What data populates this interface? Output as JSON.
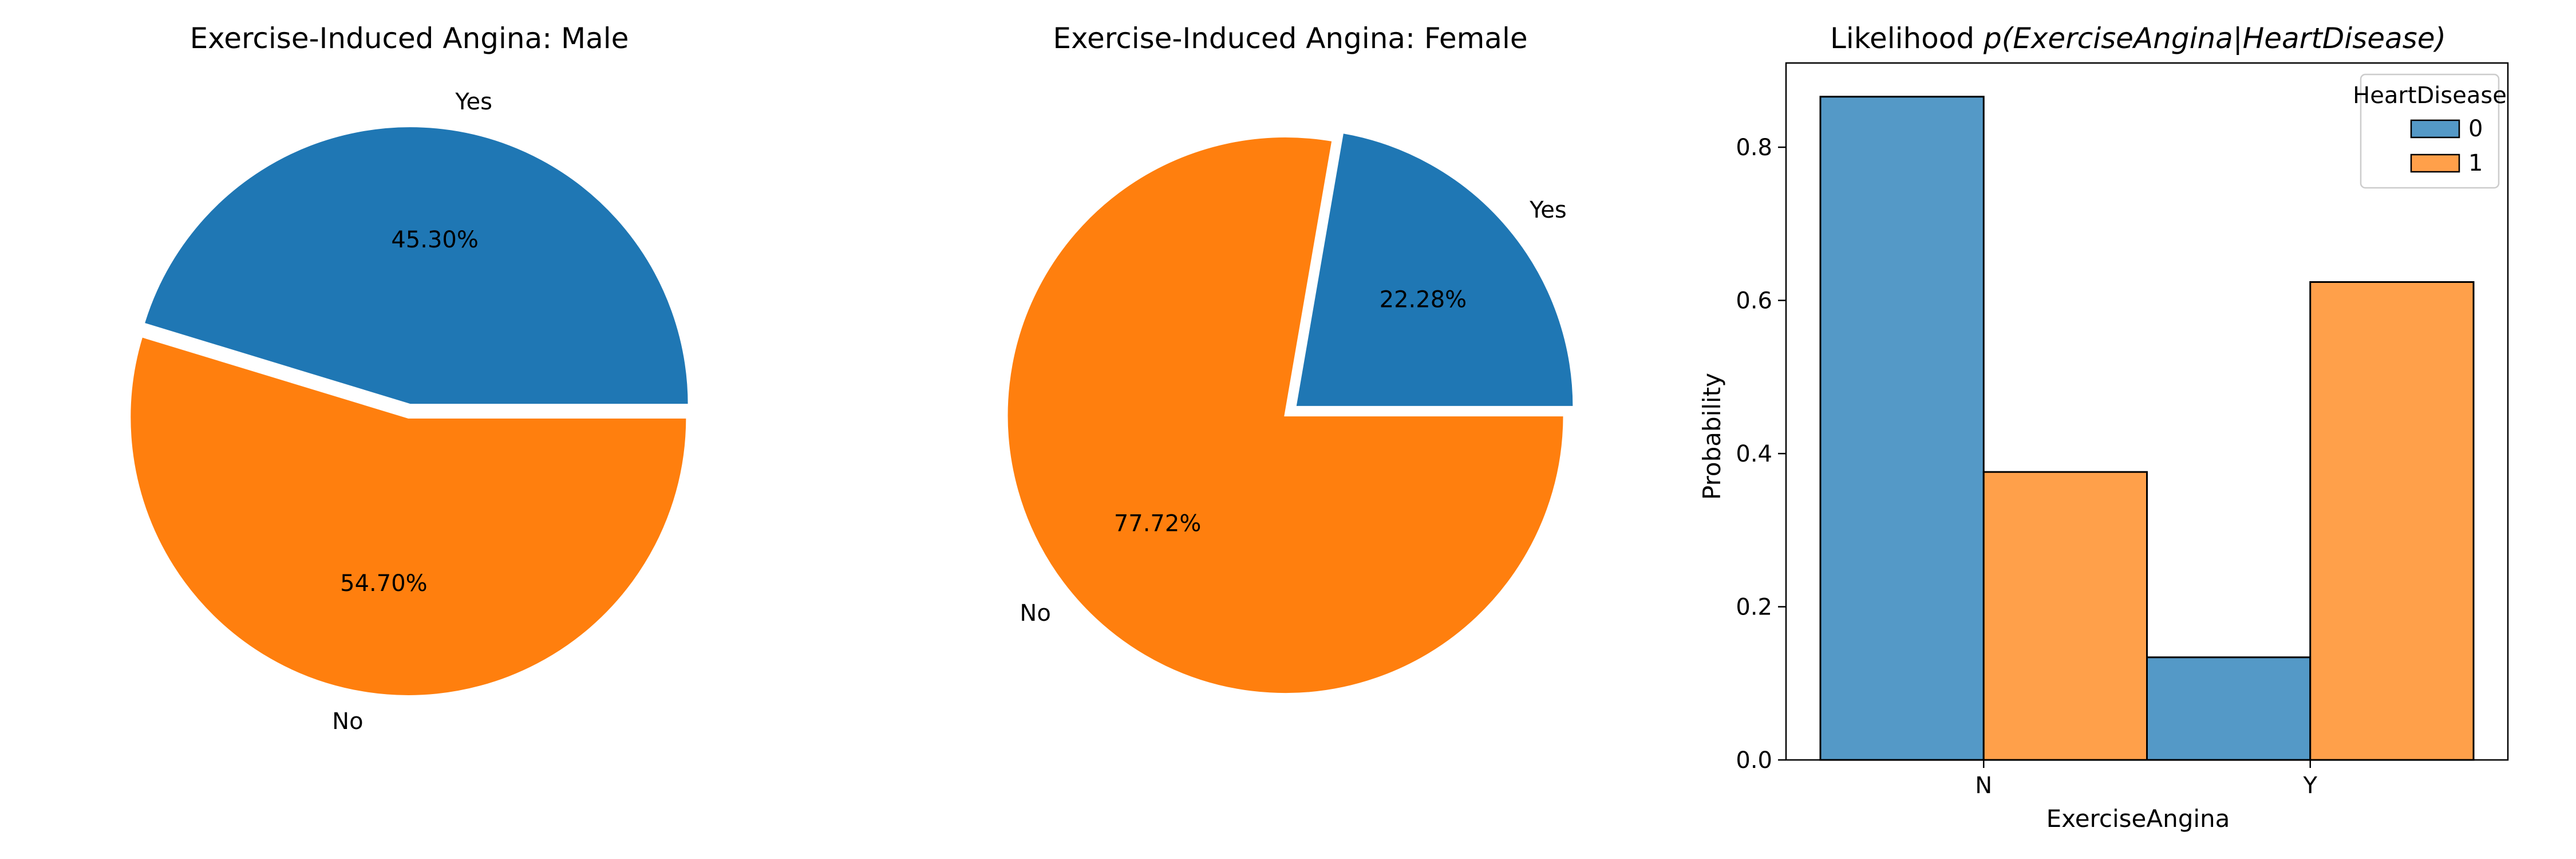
{
  "colors": {
    "blue": "#1f77b4",
    "orange": "#ff7f0e",
    "blue_bar": "#5499c7",
    "orange_bar": "#ffa04a"
  },
  "chart_data": [
    {
      "type": "pie",
      "title": "Exercise-Induced Angina: Male",
      "slices": [
        {
          "label": "Yes",
          "value": 45.3,
          "pct_label": "45.30%",
          "color": "#1f77b4"
        },
        {
          "label": "No",
          "value": 54.7,
          "pct_label": "54.70%",
          "color": "#ff7f0e"
        }
      ],
      "start_angle": 0,
      "explode": true
    },
    {
      "type": "pie",
      "title": "Exercise-Induced Angina: Female",
      "slices": [
        {
          "label": "Yes",
          "value": 22.28,
          "pct_label": "22.28%",
          "color": "#1f77b4"
        },
        {
          "label": "No",
          "value": 77.72,
          "pct_label": "77.72%",
          "color": "#ff7f0e"
        }
      ],
      "start_angle": 0,
      "explode": true
    },
    {
      "type": "bar",
      "title_prefix": "Likelihood ",
      "title_math": "p(ExerciseAngina|HeartDisease)",
      "xlabel": "ExerciseAngina",
      "ylabel": "Probability",
      "categories": [
        "N",
        "Y"
      ],
      "ylim": [
        0,
        0.91
      ],
      "yticks": [
        "0.0",
        "0.2",
        "0.4",
        "0.6",
        "0.8"
      ],
      "legend_title": "HeartDisease",
      "legend_position": "top-right",
      "series": [
        {
          "name": "0",
          "values": [
            0.866,
            0.134
          ],
          "color": "#5499c7"
        },
        {
          "name": "1",
          "values": [
            0.376,
            0.624
          ],
          "color": "#ffa04a"
        }
      ]
    }
  ]
}
